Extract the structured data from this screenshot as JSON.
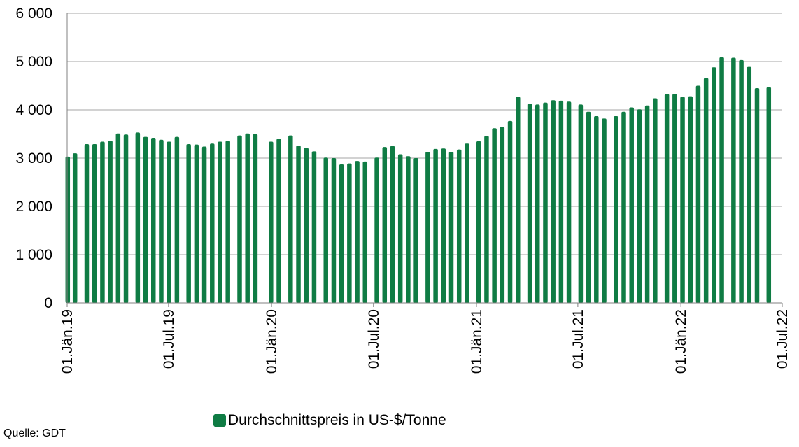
{
  "chart_data": {
    "type": "bar",
    "title": "",
    "xlabel": "",
    "ylabel": "",
    "ylim": [
      0,
      6000
    ],
    "yticks": [
      0,
      1000,
      2000,
      3000,
      4000,
      5000,
      6000
    ],
    "ytick_labels": [
      "0",
      "1 000",
      "2 000",
      "3 000",
      "4 000",
      "5 000",
      "6 000"
    ],
    "xlim": [
      "2019-01-01",
      "2022-07-01"
    ],
    "xtick_labels": [
      {
        "date": "2019-01-01",
        "label": "01.Jän.19"
      },
      {
        "date": "2019-07-01",
        "label": "01.Jul.19"
      },
      {
        "date": "2020-01-01",
        "label": "01.Jän.20"
      },
      {
        "date": "2020-07-01",
        "label": "01.Jul.20"
      },
      {
        "date": "2021-01-01",
        "label": "01.Jän.21"
      },
      {
        "date": "2021-07-01",
        "label": "01.Jul.21"
      },
      {
        "date": "2022-01-01",
        "label": "01.Jän.22"
      },
      {
        "date": "2022-07-01",
        "label": "01.Jul.22"
      }
    ],
    "grid": true,
    "legend_position": "bottom",
    "series": [
      {
        "name": "Durchschnittspreis in US-$/Tonne",
        "color": "#0f7c44",
        "points": [
          [
            "2019-01-02",
            3030
          ],
          [
            "2019-01-15",
            3100
          ],
          [
            "2019-02-05",
            3290
          ],
          [
            "2019-02-19",
            3290
          ],
          [
            "2019-03-05",
            3340
          ],
          [
            "2019-03-19",
            3360
          ],
          [
            "2019-04-02",
            3510
          ],
          [
            "2019-04-16",
            3490
          ],
          [
            "2019-05-07",
            3530
          ],
          [
            "2019-05-21",
            3440
          ],
          [
            "2019-06-04",
            3420
          ],
          [
            "2019-06-18",
            3380
          ],
          [
            "2019-07-02",
            3340
          ],
          [
            "2019-07-16",
            3440
          ],
          [
            "2019-08-06",
            3290
          ],
          [
            "2019-08-20",
            3280
          ],
          [
            "2019-09-03",
            3240
          ],
          [
            "2019-09-17",
            3300
          ],
          [
            "2019-10-01",
            3340
          ],
          [
            "2019-10-15",
            3360
          ],
          [
            "2019-11-05",
            3470
          ],
          [
            "2019-11-19",
            3510
          ],
          [
            "2019-12-03",
            3500
          ],
          [
            "2019-12-31",
            3340
          ],
          [
            "2020-01-14",
            3400
          ],
          [
            "2020-02-04",
            3470
          ],
          [
            "2020-02-18",
            3260
          ],
          [
            "2020-03-03",
            3210
          ],
          [
            "2020-03-17",
            3140
          ],
          [
            "2020-04-07",
            3010
          ],
          [
            "2020-04-21",
            3000
          ],
          [
            "2020-05-05",
            2870
          ],
          [
            "2020-05-19",
            2890
          ],
          [
            "2020-06-02",
            2940
          ],
          [
            "2020-06-16",
            2930
          ],
          [
            "2020-07-07",
            3010
          ],
          [
            "2020-07-21",
            3230
          ],
          [
            "2020-08-04",
            3250
          ],
          [
            "2020-08-18",
            3080
          ],
          [
            "2020-09-01",
            3040
          ],
          [
            "2020-09-15",
            3000
          ],
          [
            "2020-10-06",
            3130
          ],
          [
            "2020-10-20",
            3190
          ],
          [
            "2020-11-03",
            3200
          ],
          [
            "2020-11-17",
            3130
          ],
          [
            "2020-12-01",
            3180
          ],
          [
            "2020-12-15",
            3300
          ],
          [
            "2021-01-05",
            3350
          ],
          [
            "2021-01-19",
            3460
          ],
          [
            "2021-02-02",
            3620
          ],
          [
            "2021-02-16",
            3650
          ],
          [
            "2021-03-02",
            3770
          ],
          [
            "2021-03-16",
            4270
          ],
          [
            "2021-04-06",
            4130
          ],
          [
            "2021-04-20",
            4110
          ],
          [
            "2021-05-04",
            4150
          ],
          [
            "2021-05-18",
            4200
          ],
          [
            "2021-06-01",
            4190
          ],
          [
            "2021-06-15",
            4170
          ],
          [
            "2021-07-06",
            4110
          ],
          [
            "2021-07-20",
            3960
          ],
          [
            "2021-08-03",
            3870
          ],
          [
            "2021-08-17",
            3820
          ],
          [
            "2021-09-07",
            3870
          ],
          [
            "2021-09-21",
            3960
          ],
          [
            "2021-10-05",
            4050
          ],
          [
            "2021-10-19",
            4010
          ],
          [
            "2021-11-02",
            4090
          ],
          [
            "2021-11-16",
            4240
          ],
          [
            "2021-12-07",
            4330
          ],
          [
            "2021-12-21",
            4330
          ],
          [
            "2022-01-04",
            4270
          ],
          [
            "2022-01-18",
            4280
          ],
          [
            "2022-02-01",
            4500
          ],
          [
            "2022-02-15",
            4660
          ],
          [
            "2022-03-01",
            4880
          ],
          [
            "2022-03-15",
            5090
          ],
          [
            "2022-04-05",
            5080
          ],
          [
            "2022-04-19",
            5030
          ],
          [
            "2022-05-03",
            4890
          ],
          [
            "2022-05-17",
            4450
          ],
          [
            "2022-06-07",
            4470
          ]
        ]
      }
    ]
  },
  "legend": {
    "label": "Durchschnittspreis in US-$/Tonne",
    "color": "#0f7c44"
  },
  "source_note": "Quelle: GDT"
}
